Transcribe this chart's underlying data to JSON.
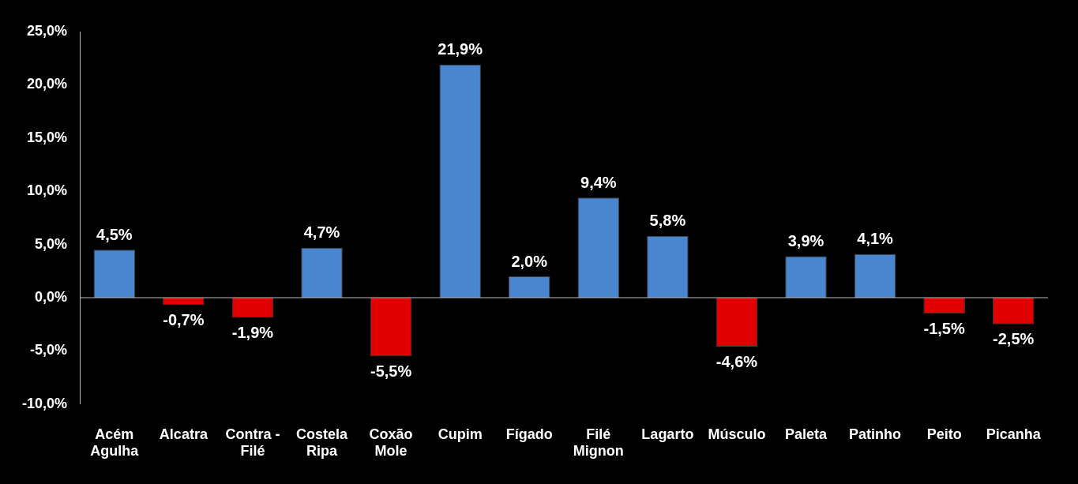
{
  "chart_data": {
    "type": "bar",
    "categories": [
      "Acém Agulha",
      "Alcatra",
      "Contra - Filé",
      "Costela Ripa",
      "Coxão Mole",
      "Cupim",
      "Fígado",
      "Filé Mignon",
      "Lagarto",
      "Músculo",
      "Paleta",
      "Patinho",
      "Peito",
      "Picanha"
    ],
    "values": [
      4.5,
      -0.7,
      -1.9,
      4.7,
      -5.5,
      21.9,
      2.0,
      9.4,
      5.8,
      -4.6,
      3.9,
      4.1,
      -1.5,
      -2.5
    ],
    "colors": [
      "#4a86d0",
      "#e00000",
      "#e00000",
      "#4a86d0",
      "#e00000",
      "#4a86d0",
      "#4a86d0",
      "#4a86d0",
      "#4a86d0",
      "#e00000",
      "#4a86d0",
      "#4a86d0",
      "#e00000",
      "#e00000"
    ],
    "value_labels": [
      "4,5%",
      "-0,7%",
      "-1,9%",
      "4,7%",
      "-5,5%",
      "21,9%",
      "2,0%",
      "9,4%",
      "5,8%",
      "-4,6%",
      "3,9%",
      "4,1%",
      "-1,5%",
      "-2,5%"
    ],
    "ylim": [
      -10,
      25
    ],
    "yticks": [
      {
        "value": -10,
        "label": "-10,0%"
      },
      {
        "value": -5,
        "label": "-5,0%"
      },
      {
        "value": 0,
        "label": "0,0%"
      },
      {
        "value": 5,
        "label": "5,0%"
      },
      {
        "value": 10,
        "label": "10,0%"
      },
      {
        "value": 15,
        "label": "15,0%"
      },
      {
        "value": 20,
        "label": "20,0%"
      },
      {
        "value": 25,
        "label": "25,0%"
      }
    ],
    "ref_lines": [
      {
        "axis": "y",
        "value": 0,
        "color": "#bbbbbb"
      }
    ],
    "grid": false,
    "legend": false
  }
}
